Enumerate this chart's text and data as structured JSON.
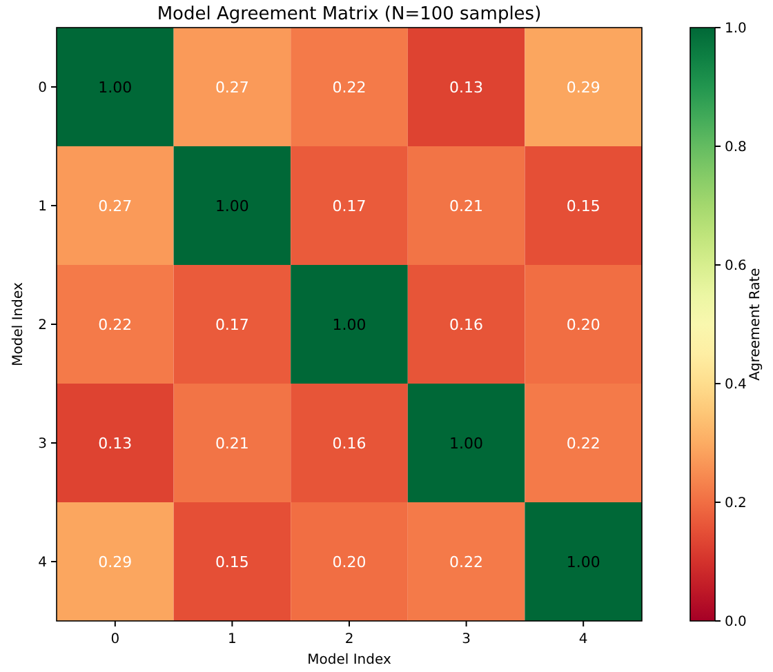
{
  "chart_data": {
    "type": "heatmap",
    "title": "Model Agreement Matrix (N=100 samples)",
    "xlabel": "Model Index",
    "ylabel": "Model Index",
    "clabel": "Agreement Rate",
    "categories": [
      "0",
      "1",
      "2",
      "3",
      "4"
    ],
    "y_categories": [
      "0",
      "1",
      "2",
      "3",
      "4"
    ],
    "cells": [
      [
        1.0,
        0.27,
        0.22,
        0.13,
        0.29
      ],
      [
        0.27,
        1.0,
        0.17,
        0.21,
        0.15
      ],
      [
        0.22,
        0.17,
        1.0,
        0.16,
        0.2
      ],
      [
        0.13,
        0.21,
        0.16,
        1.0,
        0.22
      ],
      [
        0.29,
        0.15,
        0.2,
        0.22,
        1.0
      ]
    ],
    "cell_labels": [
      [
        "1.00",
        "0.27",
        "0.22",
        "0.13",
        "0.29"
      ],
      [
        "0.27",
        "1.00",
        "0.17",
        "0.21",
        "0.15"
      ],
      [
        "0.22",
        "0.17",
        "1.00",
        "0.16",
        "0.20"
      ],
      [
        "0.13",
        "0.21",
        "0.16",
        "1.00",
        "0.22"
      ],
      [
        "0.29",
        "0.15",
        "0.20",
        "0.22",
        "1.00"
      ]
    ],
    "clim": [
      0,
      1
    ],
    "cticks": [
      {
        "value": 0,
        "label": "0.0"
      },
      {
        "value": 0.2,
        "label": "0.2"
      },
      {
        "value": 0.4,
        "label": "0.4"
      },
      {
        "value": 0.6,
        "label": "0.6"
      },
      {
        "value": 0.8,
        "label": "0.8"
      },
      {
        "value": 1,
        "label": "1.0"
      }
    ]
  }
}
